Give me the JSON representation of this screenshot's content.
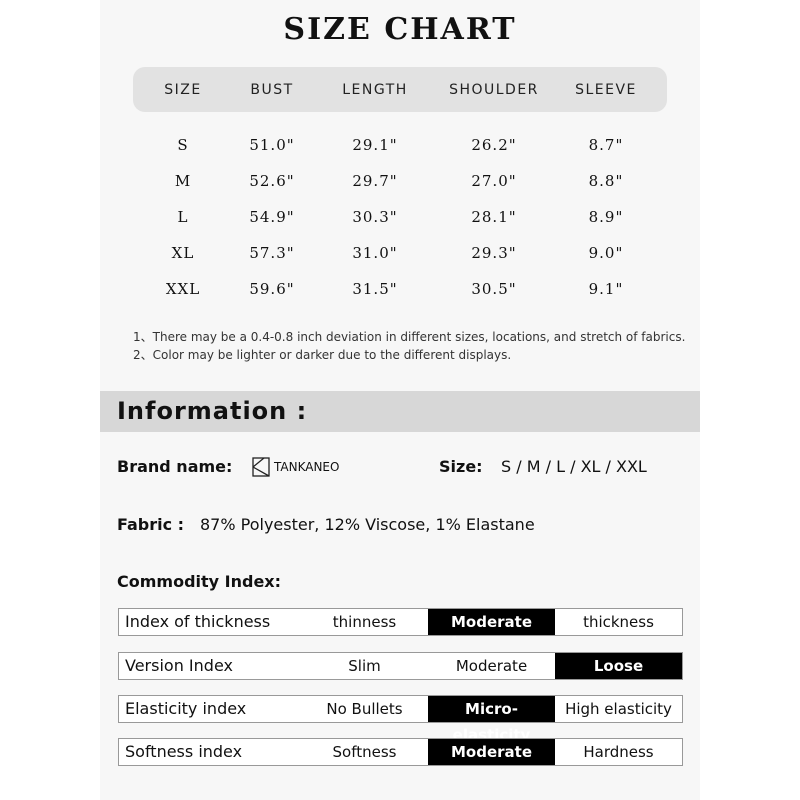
{
  "title": "SIZE CHART",
  "size_table": {
    "headers": [
      "SIZE",
      "BUST",
      "LENGTH",
      "SHOULDER",
      "SLEEVE"
    ],
    "rows": [
      [
        "S",
        "51.0\"",
        "29.1\"",
        "26.2\"",
        "8.7\""
      ],
      [
        "M",
        "52.6\"",
        "29.7\"",
        "27.0\"",
        "8.8\""
      ],
      [
        "L",
        "54.9\"",
        "30.3\"",
        "28.1\"",
        "8.9\""
      ],
      [
        "XL",
        "57.3\"",
        "31.0\"",
        "29.3\"",
        "9.0\""
      ],
      [
        "XXL",
        "59.6\"",
        "31.5\"",
        "30.5\"",
        "9.1\""
      ]
    ]
  },
  "notes": [
    "1、There may be a 0.4-0.8 inch deviation in different sizes, locations, and stretch of fabrics.",
    "2、Color may be lighter or darker due to the different displays."
  ],
  "information": {
    "heading": "Information :",
    "brand_label": "Brand name:",
    "brand": "TANKANEO",
    "size_label": "Size:",
    "sizes": "S / M / L / XL / XXL",
    "fabric_label": "Fabric :",
    "fabric": "87% Polyester, 12% Viscose, 1% Elastane"
  },
  "commodity_index": {
    "heading": "Commodity Index:",
    "rows": [
      {
        "name": "Index of thickness",
        "options": [
          "thinness",
          "Moderate",
          "thickness"
        ],
        "selected": 1
      },
      {
        "name": "Version Index",
        "options": [
          "Slim",
          "Moderate",
          "Loose"
        ],
        "selected": 2
      },
      {
        "name": "Elasticity index",
        "options": [
          "No Bullets",
          "Micro-elasticity",
          "High elasticity"
        ],
        "selected": 1
      },
      {
        "name": "Softness index",
        "options": [
          "Softness",
          "Moderate",
          "Hardness"
        ],
        "selected": 1
      }
    ]
  }
}
